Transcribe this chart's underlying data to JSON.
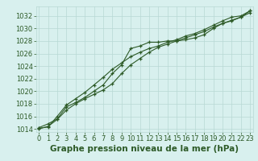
{
  "x": [
    0,
    1,
    2,
    3,
    4,
    5,
    6,
    7,
    8,
    9,
    10,
    11,
    12,
    13,
    14,
    15,
    16,
    17,
    18,
    19,
    20,
    21,
    22,
    23
  ],
  "line1": [
    1014.2,
    1014.8,
    1015.6,
    1017.5,
    1018.2,
    1019.0,
    1020.0,
    1021.0,
    1022.8,
    1024.2,
    1026.8,
    1027.2,
    1027.8,
    1027.8,
    1028.0,
    1028.0,
    1028.2,
    1028.5,
    1029.0,
    1030.0,
    1030.8,
    1031.2,
    1031.8,
    1032.5
  ],
  "line2": [
    1014.0,
    1014.4,
    1015.5,
    1017.0,
    1018.0,
    1018.8,
    1019.5,
    1020.2,
    1021.2,
    1022.8,
    1024.2,
    1025.2,
    1026.2,
    1027.0,
    1027.5,
    1028.0,
    1028.5,
    1029.0,
    1029.5,
    1030.2,
    1030.8,
    1031.3,
    1031.8,
    1032.8
  ],
  "line3": [
    1014.1,
    1014.3,
    1016.0,
    1017.8,
    1018.8,
    1019.8,
    1021.0,
    1022.2,
    1023.5,
    1024.5,
    1025.5,
    1026.2,
    1026.8,
    1027.2,
    1027.8,
    1028.2,
    1028.8,
    1029.2,
    1029.8,
    1030.5,
    1031.2,
    1031.8,
    1032.0,
    1032.8
  ],
  "line_color": "#2d5a27",
  "bg_color": "#d8f0ee",
  "grid_color": "#b8d8d4",
  "ylabel_ticks": [
    1014,
    1016,
    1018,
    1020,
    1022,
    1024,
    1026,
    1028,
    1030,
    1032
  ],
  "xlabel_ticks": [
    0,
    1,
    2,
    3,
    4,
    5,
    6,
    7,
    8,
    9,
    10,
    11,
    12,
    13,
    14,
    15,
    16,
    17,
    18,
    19,
    20,
    21,
    22,
    23
  ],
  "ylim": [
    1013.5,
    1033.5
  ],
  "xlim": [
    -0.3,
    23.3
  ],
  "xlabel": "Graphe pression niveau de la mer (hPa)",
  "tick_fontsize": 6.0,
  "xlabel_fontsize": 7.5
}
